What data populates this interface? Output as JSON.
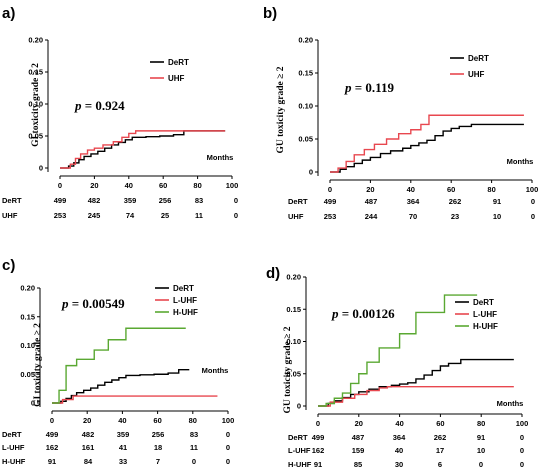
{
  "chart_data": [
    {
      "type": "line",
      "panel_label": "a)",
      "ylabel": "GI toxicity grade ≥ 2",
      "xlabel": "Months",
      "p_label": "p",
      "p_value": "= 0.924",
      "xlim": [
        0,
        100
      ],
      "ylim": [
        0,
        0.2
      ],
      "xticks": [
        "0",
        "20",
        "40",
        "60",
        "80",
        "100"
      ],
      "yticks": [
        "0",
        "0.05",
        "0.10",
        "0.15",
        "0.20"
      ],
      "legend_position": "top-right",
      "colors": {
        "DeRT": "#000000",
        "UHF": "#e8474f"
      },
      "series": [
        {
          "name": "DeRT",
          "x": [
            0,
            5,
            8,
            11,
            14,
            18,
            22,
            26,
            30,
            34,
            38,
            42,
            50,
            58,
            66,
            72,
            80,
            96
          ],
          "y": [
            0,
            0.003,
            0.008,
            0.013,
            0.018,
            0.022,
            0.026,
            0.031,
            0.036,
            0.04,
            0.044,
            0.048,
            0.049,
            0.05,
            0.052,
            0.058,
            0.058,
            0.058
          ]
        },
        {
          "name": "UHF",
          "x": [
            0,
            6,
            9,
            12,
            16,
            20,
            25,
            31,
            36,
            40,
            44,
            96
          ],
          "y": [
            0,
            0.006,
            0.015,
            0.022,
            0.028,
            0.031,
            0.036,
            0.041,
            0.048,
            0.054,
            0.058,
            0.058
          ]
        }
      ],
      "risk_table": {
        "rows": [
          {
            "label": "DeRT",
            "values": [
              "499",
              "482",
              "359",
              "256",
              "83",
              "0"
            ]
          },
          {
            "label": "UHF",
            "values": [
              "253",
              "245",
              "74",
              "25",
              "11",
              "0"
            ]
          }
        ]
      }
    },
    {
      "type": "line",
      "panel_label": "b)",
      "ylabel": "GU toxicity grade ≥ 2",
      "xlabel": "Months",
      "p_label": "p",
      "p_value": "= 0.119",
      "xlim": [
        0,
        100
      ],
      "ylim": [
        0,
        0.2
      ],
      "xticks": [
        "0",
        "20",
        "40",
        "60",
        "80",
        "100"
      ],
      "yticks": [
        "0",
        "0.05",
        "0.10",
        "0.15",
        "0.20"
      ],
      "legend_position": "top-right",
      "colors": {
        "DeRT": "#000000",
        "UHF": "#e8474f"
      },
      "series": [
        {
          "name": "DeRT",
          "x": [
            0,
            5,
            8,
            12,
            16,
            20,
            25,
            30,
            36,
            40,
            44,
            48,
            52,
            56,
            60,
            64,
            70,
            80,
            96
          ],
          "y": [
            0,
            0.004,
            0.008,
            0.013,
            0.018,
            0.022,
            0.028,
            0.032,
            0.036,
            0.04,
            0.044,
            0.048,
            0.055,
            0.062,
            0.066,
            0.069,
            0.072,
            0.072,
            0.072
          ]
        },
        {
          "name": "UHF",
          "x": [
            0,
            4,
            8,
            12,
            17,
            22,
            28,
            34,
            40,
            45,
            49,
            96
          ],
          "y": [
            0,
            0.006,
            0.016,
            0.026,
            0.034,
            0.042,
            0.05,
            0.058,
            0.064,
            0.072,
            0.086,
            0.086
          ]
        }
      ],
      "risk_table": {
        "rows": [
          {
            "label": "DeRT",
            "values": [
              "499",
              "487",
              "364",
              "262",
              "91",
              "0"
            ]
          },
          {
            "label": "UHF",
            "values": [
              "253",
              "244",
              "70",
              "23",
              "10",
              "0"
            ]
          }
        ]
      }
    },
    {
      "type": "line",
      "panel_label": "c)",
      "ylabel": "GI toxicity grade ≥ 2",
      "xlabel": "Months",
      "p_label": "p",
      "p_value": "= 0.00549",
      "xlim": [
        0,
        100
      ],
      "ylim": [
        0,
        0.2
      ],
      "xticks": [
        "0",
        "20",
        "40",
        "60",
        "80",
        "100"
      ],
      "yticks": [
        "0",
        "0.05",
        "0.10",
        "0.15",
        "0.20"
      ],
      "legend_position": "top-right",
      "colors": {
        "DeRT": "#000000",
        "L-UHF": "#e8474f",
        "H-UHF": "#5aa832"
      },
      "series": [
        {
          "name": "DeRT",
          "x": [
            0,
            5,
            8,
            11,
            14,
            18,
            22,
            26,
            30,
            34,
            38,
            42,
            50,
            58,
            66,
            72,
            78
          ],
          "y": [
            0,
            0.003,
            0.008,
            0.013,
            0.018,
            0.022,
            0.026,
            0.031,
            0.036,
            0.04,
            0.044,
            0.048,
            0.049,
            0.05,
            0.052,
            0.058,
            0.058
          ]
        },
        {
          "name": "L-UHF",
          "x": [
            0,
            6,
            12,
            94
          ],
          "y": [
            0,
            0.006,
            0.012,
            0.012
          ]
        },
        {
          "name": "H-UHF",
          "x": [
            0,
            4,
            8,
            14,
            24,
            32,
            42,
            76
          ],
          "y": [
            0,
            0.022,
            0.065,
            0.076,
            0.092,
            0.11,
            0.13,
            0.13
          ]
        }
      ],
      "risk_table": {
        "rows": [
          {
            "label": "DeRT",
            "values": [
              "499",
              "482",
              "359",
              "256",
              "83",
              "0"
            ]
          },
          {
            "label": "L-UHF",
            "values": [
              "162",
              "161",
              "41",
              "18",
              "11",
              "0"
            ]
          },
          {
            "label": "H-UHF",
            "values": [
              "91",
              "84",
              "33",
              "7",
              "0",
              "0"
            ]
          }
        ]
      }
    },
    {
      "type": "line",
      "panel_label": "d)",
      "ylabel": "GU toxicity grade ≥ 2",
      "xlabel": "Months",
      "p_label": "p",
      "p_value": "= 0.00126",
      "xlim": [
        0,
        100
      ],
      "ylim": [
        0,
        0.2
      ],
      "xticks": [
        "0",
        "20",
        "40",
        "60",
        "80",
        "100"
      ],
      "yticks": [
        "0",
        "0.05",
        "0.10",
        "0.15",
        "0.20"
      ],
      "legend_position": "top-right",
      "colors": {
        "DeRT": "#000000",
        "L-UHF": "#e8474f",
        "H-UHF": "#5aa832"
      },
      "series": [
        {
          "name": "DeRT",
          "x": [
            0,
            5,
            8,
            12,
            16,
            20,
            25,
            30,
            36,
            40,
            44,
            48,
            52,
            56,
            60,
            64,
            70,
            80,
            96
          ],
          "y": [
            0,
            0.004,
            0.008,
            0.013,
            0.018,
            0.022,
            0.026,
            0.03,
            0.032,
            0.034,
            0.036,
            0.042,
            0.048,
            0.055,
            0.062,
            0.066,
            0.072,
            0.072,
            0.072
          ]
        },
        {
          "name": "L-UHF",
          "x": [
            0,
            6,
            12,
            18,
            24,
            30,
            34,
            96
          ],
          "y": [
            0,
            0.006,
            0.012,
            0.018,
            0.024,
            0.028,
            0.03,
            0.03
          ]
        },
        {
          "name": "H-UHF",
          "x": [
            0,
            4,
            8,
            12,
            16,
            20,
            24,
            30,
            40,
            48,
            62,
            78
          ],
          "y": [
            0,
            0.004,
            0.012,
            0.02,
            0.035,
            0.05,
            0.068,
            0.09,
            0.112,
            0.145,
            0.172,
            0.172
          ]
        }
      ],
      "risk_table": {
        "rows": [
          {
            "label": "DeRT",
            "values": [
              "499",
              "487",
              "364",
              "262",
              "91",
              "0"
            ]
          },
          {
            "label": "L-UHF",
            "values": [
              "162",
              "159",
              "40",
              "17",
              "10",
              "0"
            ]
          },
          {
            "label": "H-UHF",
            "values": [
              "91",
              "85",
              "30",
              "6",
              "0",
              "0"
            ]
          }
        ]
      }
    }
  ]
}
